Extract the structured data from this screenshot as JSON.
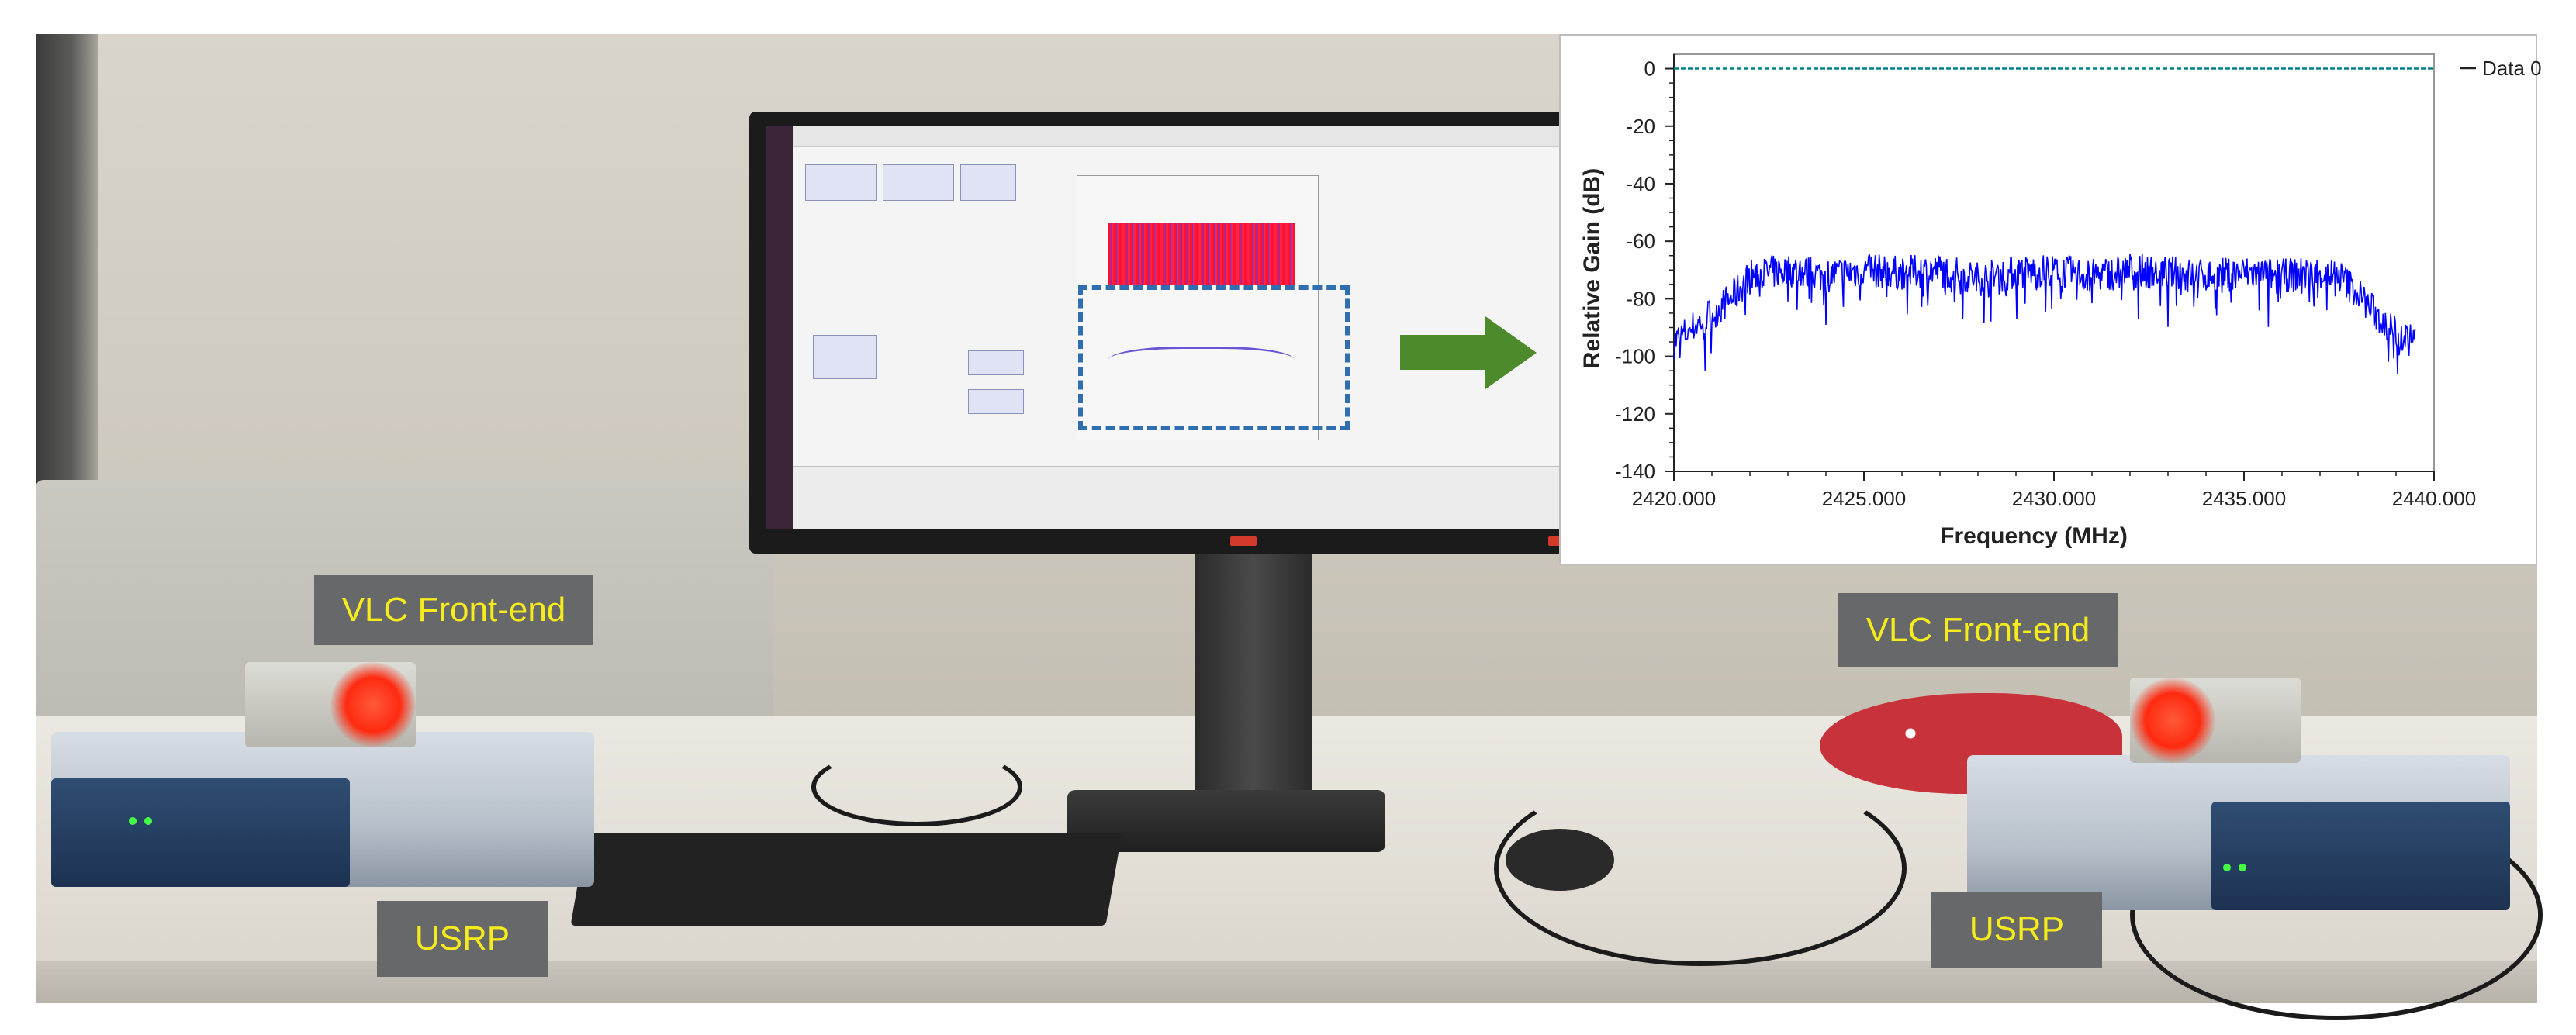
{
  "labels": {
    "left_front_end": "VLC Front-end",
    "left_usrp": "USRP",
    "right_front_end": "VLC Front-end",
    "right_usrp": "USRP"
  },
  "colors": {
    "label_background": "#666869",
    "label_text": "#f6ec1d",
    "highlight_box": "#2f6fb0",
    "arrow": "#4d8a2c",
    "trace": "#0000ff",
    "reference_line": "#00808a"
  },
  "chart_data": {
    "type": "line",
    "title": "",
    "xlabel": "Frequency (MHz)",
    "ylabel": "Relative Gain (dB)",
    "xlim": [
      2420.0,
      2440.0
    ],
    "ylim": [
      -140,
      5
    ],
    "x_ticks": [
      "2420.000",
      "2425.000",
      "2430.000",
      "2435.000",
      "2440.000"
    ],
    "y_ticks": [
      "0",
      "-20",
      "-40",
      "-60",
      "-80",
      "-100",
      "-120",
      "-140"
    ],
    "legend": {
      "position": "top-right"
    },
    "grid": false,
    "series": [
      {
        "name": "Data 0",
        "style": "dashed",
        "color": "#00808a",
        "x": [
          2420.0,
          2440.0
        ],
        "y": [
          0,
          0
        ]
      },
      {
        "name": "",
        "color": "#0000ff",
        "x": [
          2420.0,
          2420.5,
          2421.0,
          2421.5,
          2422.0,
          2423.0,
          2424.0,
          2425.0,
          2426.0,
          2427.0,
          2428.0,
          2429.0,
          2430.0,
          2431.0,
          2432.0,
          2433.0,
          2434.0,
          2435.0,
          2436.0,
          2437.0,
          2437.5,
          2438.0,
          2438.5,
          2439.0,
          2439.5
        ],
        "y": [
          -95,
          -90,
          -85,
          -80,
          -72,
          -70,
          -72,
          -70,
          -71,
          -70,
          -73,
          -71,
          -70,
          -72,
          -70,
          -71,
          -72,
          -71,
          -72,
          -71,
          -72,
          -78,
          -86,
          -92,
          -95
        ]
      }
    ]
  }
}
